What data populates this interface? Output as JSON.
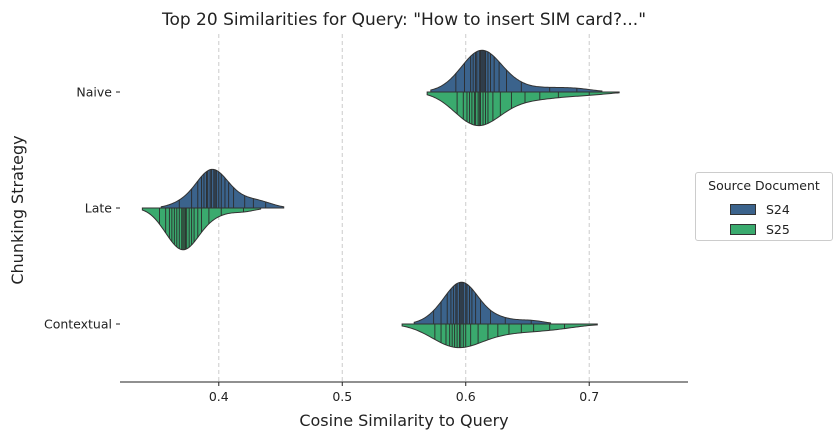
{
  "chart_data": {
    "type": "violin",
    "title": "Top 20 Similarities for Query: \"How to insert SIM card?...\"",
    "xlabel": "Cosine Similarity to Query",
    "ylabel": "Chunking Strategy",
    "xlim": [
      0.32,
      0.78
    ],
    "xticks": [
      0.4,
      0.5,
      0.6,
      0.7
    ],
    "xtick_labels": [
      "0.4",
      "0.5",
      "0.6",
      "0.7"
    ],
    "grid": "x-major, dashed",
    "orientation": "horizontal",
    "split": true,
    "inner": "stick",
    "categories": [
      "Naive",
      "Late",
      "Contextual"
    ],
    "legend": {
      "title": "Source Document",
      "position": "right"
    },
    "series": [
      {
        "name": "S24",
        "color": "#3b638c",
        "points": [
          [
            0.592,
            0.599,
            0.604,
            0.606,
            0.608,
            0.609,
            0.611,
            0.612,
            0.613,
            0.614,
            0.615,
            0.616,
            0.618,
            0.62,
            0.623,
            0.627,
            0.633,
            0.645,
            0.668,
            0.69
          ],
          [
            0.368,
            0.378,
            0.383,
            0.386,
            0.388,
            0.39,
            0.391,
            0.393,
            0.394,
            0.396,
            0.397,
            0.398,
            0.4,
            0.402,
            0.405,
            0.408,
            0.412,
            0.421,
            0.428,
            0.438
          ],
          [
            0.574,
            0.58,
            0.585,
            0.588,
            0.59,
            0.592,
            0.593,
            0.595,
            0.596,
            0.597,
            0.598,
            0.6,
            0.601,
            0.603,
            0.605,
            0.608,
            0.612,
            0.62,
            0.632,
            0.653
          ]
        ]
      },
      {
        "name": "S25",
        "color": "#3aaa6e",
        "points": [
          [
            0.593,
            0.598,
            0.601,
            0.603,
            0.605,
            0.607,
            0.608,
            0.61,
            0.611,
            0.612,
            0.614,
            0.616,
            0.618,
            0.622,
            0.628,
            0.637,
            0.648,
            0.66,
            0.675,
            0.7
          ],
          [
            0.352,
            0.357,
            0.36,
            0.362,
            0.364,
            0.366,
            0.368,
            0.37,
            0.371,
            0.372,
            0.373,
            0.374,
            0.376,
            0.378,
            0.38,
            0.383,
            0.386,
            0.392,
            0.402,
            0.42
          ],
          [
            0.575,
            0.58,
            0.584,
            0.587,
            0.589,
            0.591,
            0.593,
            0.595,
            0.596,
            0.598,
            0.6,
            0.604,
            0.61,
            0.618,
            0.626,
            0.635,
            0.645,
            0.655,
            0.668,
            0.68
          ]
        ]
      }
    ]
  }
}
